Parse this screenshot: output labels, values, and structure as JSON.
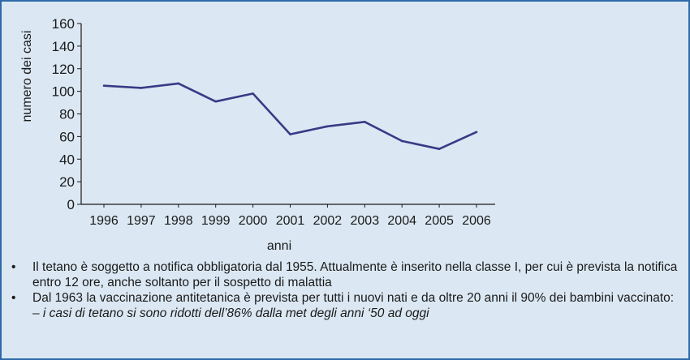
{
  "chart_data": {
    "type": "line",
    "title": "",
    "xlabel": "anni",
    "ylabel": "numero dei casi",
    "categories": [
      "1996",
      "1997",
      "1998",
      "1999",
      "2000",
      "2001",
      "2002",
      "2003",
      "2004",
      "2005",
      "2006"
    ],
    "series": [
      {
        "values": [
          105,
          103,
          107,
          91,
          98,
          62,
          69,
          73,
          56,
          49,
          64
        ]
      }
    ],
    "ylim": [
      0,
      160
    ],
    "yticks": [
      0,
      20,
      40,
      60,
      80,
      100,
      120,
      140,
      160
    ],
    "grid": false,
    "line_color": "#3a3a86"
  },
  "notes": {
    "bullets": [
      "Il tetano è soggetto a notifica obbligatoria dal 1955. Attualmente è inserito nella classe I, per cui è prevista la notifica entro 12 ore, anche soltanto per il sospetto di malattia",
      "Dal 1963 la vaccinazione antitetanica è prevista per tutti i nuovi nati e da oltre 20 anni il 90% dei bambini vaccinato:"
    ],
    "sub_note": "– i casi di tetano si sono ridotti dell’86% dalla met   degli anni ‘50 ad oggi"
  }
}
